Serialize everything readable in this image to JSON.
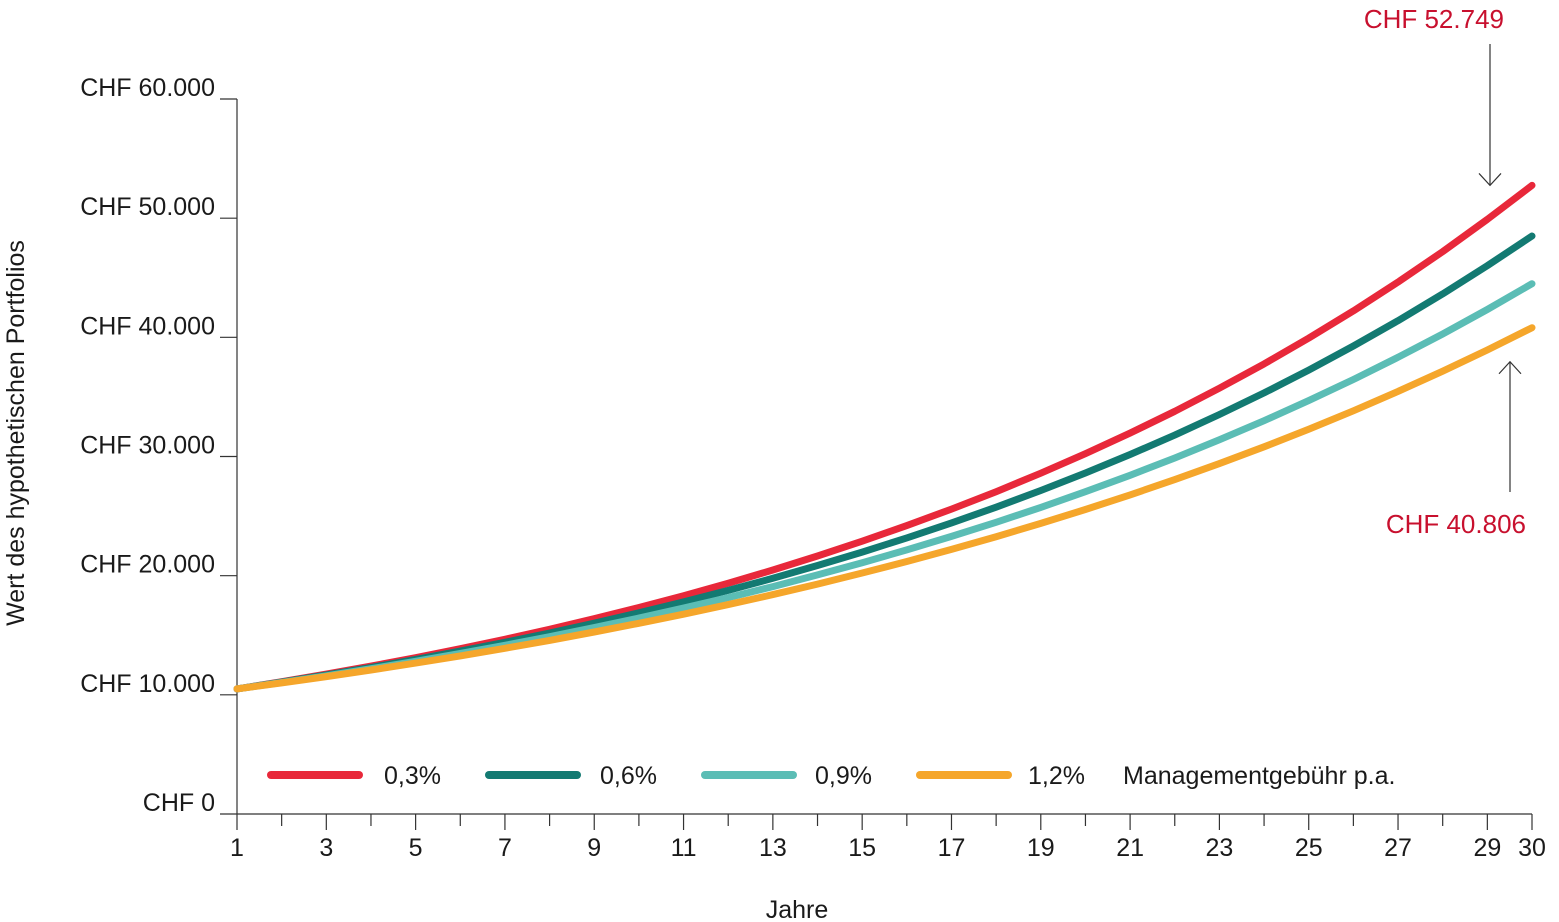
{
  "chart_data": {
    "type": "line",
    "title": "",
    "xlabel": "Jahre",
    "ylabel": "Wert des hypothetischen Portfolios",
    "xlim": [
      1,
      30
    ],
    "ylim": [
      0,
      60000
    ],
    "grid": false,
    "legend_position": "bottom-inside",
    "legend_suffix": "Managementgebühr p.a.",
    "x_ticks": [
      1,
      3,
      5,
      7,
      9,
      11,
      13,
      15,
      17,
      19,
      21,
      23,
      25,
      27,
      29,
      30
    ],
    "x_tick_labels": [
      "1",
      "3",
      "5",
      "7",
      "9",
      "11",
      "13",
      "15",
      "17",
      "19",
      "21",
      "23",
      "25",
      "27",
      "29",
      "30"
    ],
    "y_ticks": [
      0,
      10000,
      20000,
      30000,
      40000,
      50000,
      60000
    ],
    "y_tick_labels": [
      "CHF 0",
      "CHF 10.000",
      "CHF 20.000",
      "CHF 30.000",
      "CHF 40.000",
      "CHF 50.000",
      "CHF 60.000"
    ],
    "x": [
      1,
      2,
      3,
      4,
      5,
      6,
      7,
      8,
      9,
      10,
      11,
      12,
      13,
      14,
      15,
      16,
      17,
      18,
      19,
      20,
      21,
      22,
      23,
      24,
      25,
      26,
      27,
      28,
      29,
      30
    ],
    "series": [
      {
        "name": "0,3%",
        "color": "#e8283a",
        "start": 10500,
        "end": 52749
      },
      {
        "name": "0,6%",
        "color": "#137a72",
        "start": 10500,
        "end": 48500
      },
      {
        "name": "0,9%",
        "color": "#5bbdb5",
        "start": 10500,
        "end": 44500
      },
      {
        "name": "1,2%",
        "color": "#f5a62b",
        "start": 10500,
        "end": 40806
      }
    ],
    "annotations": [
      {
        "text": "CHF 52.749",
        "x": 30,
        "y": 52749,
        "position": "above"
      },
      {
        "text": "CHF 40.806",
        "x": 30,
        "y": 40806,
        "position": "below"
      }
    ]
  }
}
